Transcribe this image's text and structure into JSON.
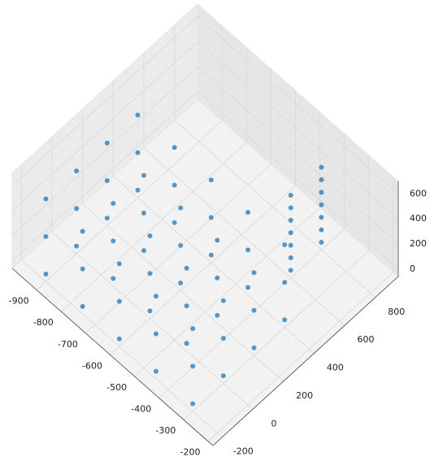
{
  "chart_data": {
    "type": "scatter3d",
    "color": "#1f77b4",
    "xlim": [
      -1000,
      -180
    ],
    "ylim": [
      -260,
      950
    ],
    "zlim": [
      -60,
      700
    ],
    "xticks": [
      -900,
      -800,
      -700,
      -600,
      -500,
      -400,
      -300,
      -200
    ],
    "yticks": [
      -200,
      0,
      200,
      400,
      600,
      800
    ],
    "zticks": [
      0,
      200,
      400,
      600
    ],
    "x": [
      -900,
      -900,
      -900,
      -900,
      -900,
      -900,
      -900,
      -900,
      -900,
      -900,
      -900,
      -900,
      -750,
      -750,
      -750,
      -750,
      -750,
      -750,
      -750,
      -750,
      -750,
      -750,
      -750,
      -750,
      -600,
      -600,
      -600,
      -600,
      -600,
      -600,
      -600,
      -600,
      -600,
      -600,
      -600,
      -600,
      -450,
      -450,
      -450,
      -450,
      -450,
      -450,
      -450,
      -450,
      -450,
      -450,
      -450,
      -450,
      -300,
      -300,
      -300,
      -300,
      -300,
      -300,
      -300,
      -300,
      -300,
      -300,
      -300,
      -300,
      -400,
      -400,
      -400,
      -400,
      -400,
      -400,
      -400,
      -400,
      -400,
      -400,
      -400,
      -400,
      -400,
      -400
    ],
    "y": [
      -200,
      -200,
      -200,
      0,
      0,
      0,
      200,
      200,
      200,
      400,
      400,
      400,
      -200,
      -200,
      -200,
      0,
      0,
      0,
      200,
      200,
      200,
      400,
      400,
      400,
      -200,
      -200,
      -200,
      0,
      0,
      0,
      200,
      200,
      200,
      400,
      400,
      400,
      -200,
      -200,
      -200,
      0,
      0,
      0,
      200,
      200,
      200,
      400,
      400,
      400,
      -200,
      -200,
      -200,
      0,
      0,
      0,
      200,
      200,
      200,
      400,
      400,
      400,
      600,
      600,
      600,
      600,
      600,
      600,
      600,
      800,
      800,
      800,
      800,
      800,
      800,
      800
    ],
    "z": [
      0,
      300,
      600,
      0,
      300,
      600,
      0,
      300,
      600,
      0,
      300,
      600,
      0,
      300,
      600,
      0,
      300,
      600,
      0,
      300,
      600,
      0,
      300,
      600,
      0,
      300,
      600,
      0,
      300,
      600,
      0,
      300,
      600,
      0,
      300,
      600,
      0,
      300,
      600,
      0,
      300,
      600,
      0,
      300,
      600,
      0,
      300,
      600,
      0,
      300,
      600,
      0,
      300,
      600,
      0,
      300,
      600,
      0,
      300,
      600,
      0,
      100,
      200,
      300,
      400,
      500,
      600,
      0,
      100,
      200,
      300,
      400,
      500,
      600
    ]
  }
}
